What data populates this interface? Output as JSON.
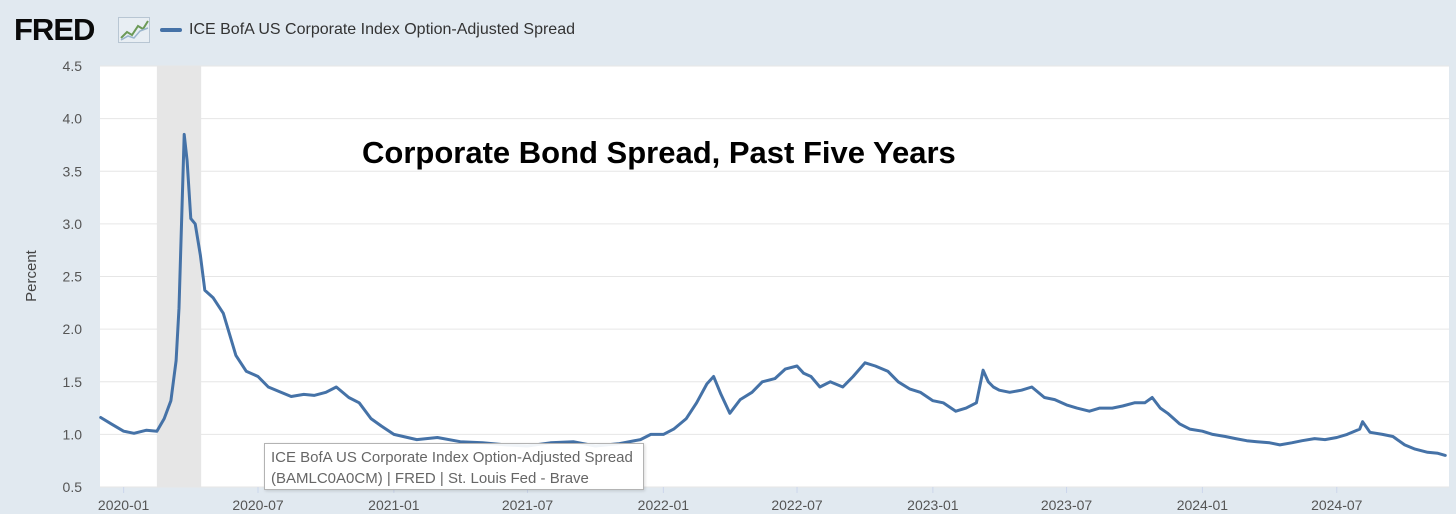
{
  "header": {
    "logo_text": "FRED",
    "logo_icon": "line-graph-icon",
    "legend_label": "ICE BofA US Corporate Index Option-Adjusted Spread",
    "legend_color": "#4572a7"
  },
  "annotation": {
    "title": "Corporate Bond Spread, Past Five Years"
  },
  "tooltip": {
    "line1": "ICE BofA US Corporate Index Option-Adjusted Spread",
    "line2": "(BAMLC0A0CM) | FRED | St. Louis Fed - Brave"
  },
  "chart_data": {
    "type": "line",
    "ylabel": "Percent",
    "xlabel": "",
    "ylim": [
      0.5,
      4.5
    ],
    "yticks": [
      "0.5",
      "1.0",
      "1.5",
      "2.0",
      "2.5",
      "3.0",
      "3.5",
      "4.0",
      "4.5"
    ],
    "xticks": [
      "2020-01",
      "2020-07",
      "2021-01",
      "2021-07",
      "2022-01",
      "2022-07",
      "2023-01",
      "2023-07",
      "2024-01",
      "2024-07"
    ],
    "xrange": [
      "2019-11-30",
      "2024-11-30"
    ],
    "grid": true,
    "recession_shading": [
      "2020-02-15",
      "2020-04-15"
    ],
    "line_color": "#4572a7",
    "series": [
      {
        "name": "ICE BofA US Corporate Index Option-Adjusted Spread",
        "x": [
          "2019-12-01",
          "2019-12-15",
          "2020-01-01",
          "2020-01-15",
          "2020-02-01",
          "2020-02-15",
          "2020-02-25",
          "2020-03-05",
          "2020-03-12",
          "2020-03-16",
          "2020-03-19",
          "2020-03-23",
          "2020-03-27",
          "2020-04-01",
          "2020-04-07",
          "2020-04-14",
          "2020-04-20",
          "2020-05-01",
          "2020-05-15",
          "2020-06-01",
          "2020-06-15",
          "2020-07-01",
          "2020-07-15",
          "2020-08-01",
          "2020-08-15",
          "2020-09-01",
          "2020-09-15",
          "2020-10-01",
          "2020-10-15",
          "2020-11-01",
          "2020-11-15",
          "2020-12-01",
          "2020-12-15",
          "2021-01-01",
          "2021-02-01",
          "2021-03-01",
          "2021-04-01",
          "2021-05-01",
          "2021-06-01",
          "2021-07-01",
          "2021-08-01",
          "2021-09-01",
          "2021-10-01",
          "2021-11-01",
          "2021-12-01",
          "2021-12-15",
          "2022-01-01",
          "2022-01-15",
          "2022-02-01",
          "2022-02-15",
          "2022-03-01",
          "2022-03-10",
          "2022-03-20",
          "2022-04-01",
          "2022-04-15",
          "2022-05-01",
          "2022-05-15",
          "2022-06-01",
          "2022-06-15",
          "2022-07-01",
          "2022-07-10",
          "2022-07-20",
          "2022-08-01",
          "2022-08-15",
          "2022-09-01",
          "2022-09-15",
          "2022-10-01",
          "2022-10-15",
          "2022-11-01",
          "2022-11-15",
          "2022-12-01",
          "2022-12-15",
          "2023-01-01",
          "2023-01-15",
          "2023-02-01",
          "2023-02-15",
          "2023-03-01",
          "2023-03-10",
          "2023-03-17",
          "2023-03-24",
          "2023-04-01",
          "2023-04-15",
          "2023-05-01",
          "2023-05-15",
          "2023-06-01",
          "2023-06-15",
          "2023-07-01",
          "2023-07-15",
          "2023-08-01",
          "2023-08-15",
          "2023-09-01",
          "2023-09-15",
          "2023-10-01",
          "2023-10-15",
          "2023-10-25",
          "2023-11-05",
          "2023-11-15",
          "2023-12-01",
          "2023-12-15",
          "2024-01-01",
          "2024-01-15",
          "2024-02-01",
          "2024-02-15",
          "2024-03-01",
          "2024-03-15",
          "2024-04-01",
          "2024-04-15",
          "2024-05-01",
          "2024-05-15",
          "2024-06-01",
          "2024-06-15",
          "2024-07-01",
          "2024-07-15",
          "2024-08-01",
          "2024-08-05",
          "2024-08-15",
          "2024-09-01",
          "2024-09-15",
          "2024-10-01",
          "2024-10-15",
          "2024-11-01",
          "2024-11-15",
          "2024-11-25"
        ],
        "values": [
          1.16,
          1.1,
          1.03,
          1.01,
          1.04,
          1.03,
          1.15,
          1.32,
          1.7,
          2.2,
          2.9,
          3.85,
          3.6,
          3.05,
          3.0,
          2.7,
          2.37,
          2.3,
          2.15,
          1.75,
          1.6,
          1.55,
          1.45,
          1.4,
          1.36,
          1.38,
          1.37,
          1.4,
          1.45,
          1.35,
          1.3,
          1.15,
          1.08,
          1.0,
          0.95,
          0.97,
          0.93,
          0.92,
          0.9,
          0.89,
          0.92,
          0.93,
          0.89,
          0.91,
          0.95,
          1.0,
          1.0,
          1.05,
          1.15,
          1.3,
          1.48,
          1.55,
          1.38,
          1.2,
          1.33,
          1.4,
          1.5,
          1.53,
          1.62,
          1.65,
          1.58,
          1.55,
          1.45,
          1.5,
          1.45,
          1.55,
          1.68,
          1.65,
          1.6,
          1.5,
          1.43,
          1.4,
          1.32,
          1.3,
          1.22,
          1.25,
          1.3,
          1.61,
          1.5,
          1.45,
          1.42,
          1.4,
          1.42,
          1.45,
          1.35,
          1.33,
          1.28,
          1.25,
          1.22,
          1.25,
          1.25,
          1.27,
          1.3,
          1.3,
          1.35,
          1.25,
          1.2,
          1.1,
          1.05,
          1.03,
          1.0,
          0.98,
          0.96,
          0.94,
          0.93,
          0.92,
          0.9,
          0.92,
          0.94,
          0.96,
          0.95,
          0.97,
          1.0,
          1.05,
          1.12,
          1.02,
          1.0,
          0.98,
          0.9,
          0.86,
          0.83,
          0.82,
          0.8
        ]
      }
    ]
  }
}
